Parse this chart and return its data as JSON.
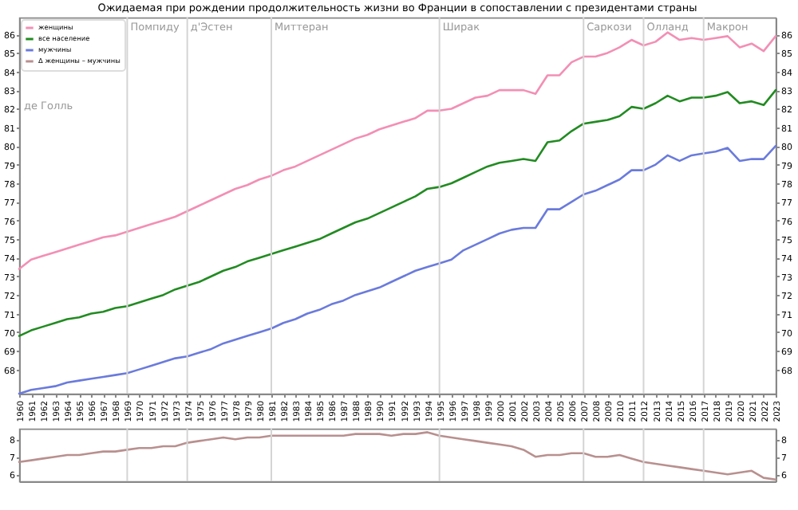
{
  "chart_data": [
    {
      "type": "line",
      "title": "Ожидаемая при рождении продолжительность жизни во Франции в сопоставлении с президентами страны",
      "x": [
        1960,
        1961,
        1962,
        1963,
        1964,
        1965,
        1966,
        1967,
        1968,
        1969,
        1970,
        1971,
        1972,
        1973,
        1974,
        1975,
        1976,
        1977,
        1978,
        1979,
        1980,
        1981,
        1982,
        1983,
        1984,
        1985,
        1986,
        1987,
        1988,
        1989,
        1990,
        1991,
        1992,
        1993,
        1994,
        1995,
        1996,
        1997,
        1998,
        1999,
        2000,
        2001,
        2002,
        2003,
        2004,
        2005,
        2006,
        2007,
        2008,
        2009,
        2010,
        2011,
        2012,
        2013,
        2014,
        2015,
        2016,
        2017,
        2018,
        2019,
        2020,
        2021,
        2022,
        2023
      ],
      "series": [
        {
          "name": "женщины",
          "color": "#f38fb4",
          "values": [
            73.4,
            73.9,
            74.1,
            74.3,
            74.5,
            74.7,
            74.9,
            75.1,
            75.2,
            75.4,
            75.6,
            75.8,
            76.0,
            76.2,
            76.5,
            76.8,
            77.1,
            77.4,
            77.7,
            77.9,
            78.2,
            78.4,
            78.7,
            78.9,
            79.2,
            79.5,
            79.8,
            80.1,
            80.4,
            80.6,
            80.9,
            81.1,
            81.3,
            81.5,
            81.9,
            81.9,
            82.0,
            82.3,
            82.6,
            82.7,
            83.0,
            83.0,
            83.0,
            82.8,
            83.8,
            83.8,
            84.5,
            84.8,
            84.8,
            85.0,
            85.3,
            85.7,
            85.4,
            85.6,
            86.1,
            85.7,
            85.8,
            85.7,
            85.8,
            85.9,
            85.3,
            85.5,
            85.1,
            85.9
          ]
        },
        {
          "name": "все население",
          "color": "#228b22",
          "values": [
            69.8,
            70.1,
            70.3,
            70.5,
            70.7,
            70.8,
            71.0,
            71.1,
            71.3,
            71.4,
            71.6,
            71.8,
            72.0,
            72.3,
            72.5,
            72.7,
            73.0,
            73.3,
            73.5,
            73.8,
            74.0,
            74.2,
            74.4,
            74.6,
            74.8,
            75.0,
            75.3,
            75.6,
            75.9,
            76.1,
            76.4,
            76.7,
            77.0,
            77.3,
            77.7,
            77.8,
            78.0,
            78.3,
            78.6,
            78.9,
            79.1,
            79.2,
            79.3,
            79.2,
            80.2,
            80.3,
            80.8,
            81.2,
            81.3,
            81.4,
            81.6,
            82.1,
            82.0,
            82.3,
            82.7,
            82.4,
            82.6,
            82.6,
            82.7,
            82.9,
            82.3,
            82.4,
            82.2,
            83.0
          ]
        },
        {
          "name": "мужчины",
          "color": "#6a7bdc",
          "values": [
            66.7,
            66.9,
            67.0,
            67.1,
            67.3,
            67.4,
            67.5,
            67.6,
            67.7,
            67.8,
            68.0,
            68.2,
            68.4,
            68.6,
            68.7,
            68.9,
            69.1,
            69.4,
            69.6,
            69.8,
            70.0,
            70.2,
            70.5,
            70.7,
            71.0,
            71.2,
            71.5,
            71.7,
            72.0,
            72.2,
            72.4,
            72.7,
            73.0,
            73.3,
            73.5,
            73.7,
            73.9,
            74.4,
            74.7,
            75.0,
            75.3,
            75.5,
            75.6,
            75.6,
            76.6,
            76.6,
            77.0,
            77.4,
            77.6,
            77.9,
            78.2,
            78.7,
            78.7,
            79.0,
            79.5,
            79.2,
            79.5,
            79.6,
            79.7,
            79.9,
            79.2,
            79.3,
            79.3,
            80.0
          ]
        }
      ],
      "xlim": [
        1960,
        2023
      ],
      "xticks": [
        1960,
        1961,
        1962,
        1963,
        1964,
        1965,
        1966,
        1967,
        1968,
        1969,
        1970,
        1971,
        1972,
        1973,
        1974,
        1975,
        1976,
        1977,
        1978,
        1979,
        1980,
        1981,
        1982,
        1983,
        1984,
        1985,
        1986,
        1987,
        1988,
        1989,
        1990,
        1991,
        1992,
        1993,
        1994,
        1995,
        1996,
        1997,
        1998,
        1999,
        2000,
        2001,
        2002,
        2003,
        2004,
        2005,
        2006,
        2007,
        2008,
        2009,
        2010,
        2011,
        2012,
        2013,
        2014,
        2015,
        2016,
        2017,
        2018,
        2019,
        2020,
        2021,
        2022,
        2023
      ],
      "ylim": [
        66.7,
        86.9
      ],
      "yticks": [
        68,
        69,
        70,
        71,
        72,
        73,
        74,
        75,
        76,
        77,
        78,
        79,
        80,
        81,
        82,
        83,
        84,
        85,
        86
      ],
      "y2lim": [
        66.7,
        86.9
      ],
      "y2ticks": [
        68,
        69,
        70,
        71,
        72,
        73,
        74,
        75,
        76,
        77,
        78,
        79,
        80,
        81,
        82,
        83,
        84,
        85,
        86
      ],
      "ref_lines": [
        {
          "axis": "x",
          "value": 1969,
          "label": "Помпиду"
        },
        {
          "axis": "x",
          "value": 1974,
          "label": "д'Эстен"
        },
        {
          "axis": "x",
          "value": 1981,
          "label": "Миттеран"
        },
        {
          "axis": "x",
          "value": 1995,
          "label": "Ширак"
        },
        {
          "axis": "x",
          "value": 2007,
          "label": "Саркози"
        },
        {
          "axis": "x",
          "value": 2012,
          "label": "Олланд"
        },
        {
          "axis": "x",
          "value": 2017,
          "label": "Макрон"
        }
      ],
      "annotations": [
        "де Голль"
      ],
      "legend": "top left"
    },
    {
      "type": "line",
      "x": [
        1960,
        1961,
        1962,
        1963,
        1964,
        1965,
        1966,
        1967,
        1968,
        1969,
        1970,
        1971,
        1972,
        1973,
        1974,
        1975,
        1976,
        1977,
        1978,
        1979,
        1980,
        1981,
        1982,
        1983,
        1984,
        1985,
        1986,
        1987,
        1988,
        1989,
        1990,
        1991,
        1992,
        1993,
        1994,
        1995,
        1996,
        1997,
        1998,
        1999,
        2000,
        2001,
        2002,
        2003,
        2004,
        2005,
        2006,
        2007,
        2008,
        2009,
        2010,
        2011,
        2012,
        2013,
        2014,
        2015,
        2016,
        2017,
        2018,
        2019,
        2020,
        2021,
        2022,
        2023
      ],
      "series": [
        {
          "name": "Δ женщины – мужчины",
          "color": "#b8908f",
          "values": [
            6.7,
            6.8,
            6.9,
            7.0,
            7.1,
            7.1,
            7.2,
            7.3,
            7.3,
            7.4,
            7.5,
            7.5,
            7.6,
            7.6,
            7.8,
            7.9,
            8.0,
            8.1,
            8.0,
            8.1,
            8.1,
            8.2,
            8.2,
            8.2,
            8.2,
            8.2,
            8.2,
            8.2,
            8.3,
            8.3,
            8.3,
            8.2,
            8.3,
            8.3,
            8.4,
            8.2,
            8.1,
            8.0,
            7.9,
            7.8,
            7.7,
            7.6,
            7.4,
            7.0,
            7.1,
            7.1,
            7.2,
            7.2,
            7.0,
            7.0,
            7.1,
            6.9,
            6.7,
            6.6,
            6.5,
            6.4,
            6.3,
            6.2,
            6.1,
            6.0,
            6.1,
            6.2,
            5.8,
            5.7
          ]
        }
      ],
      "xlim": [
        1960,
        2023
      ],
      "ylim": [
        5.6,
        8.6
      ],
      "yticks": [
        6,
        7,
        8
      ],
      "y2lim": [
        5.6,
        8.6
      ],
      "y2ticks": [
        6,
        7,
        8
      ],
      "ref_lines": [
        {
          "axis": "x",
          "value": 1969
        },
        {
          "axis": "x",
          "value": 1974
        },
        {
          "axis": "x",
          "value": 1981
        },
        {
          "axis": "x",
          "value": 1995
        },
        {
          "axis": "x",
          "value": 2007
        },
        {
          "axis": "x",
          "value": 2012
        },
        {
          "axis": "x",
          "value": 2017
        }
      ],
      "tick_labels": "y"
    }
  ]
}
